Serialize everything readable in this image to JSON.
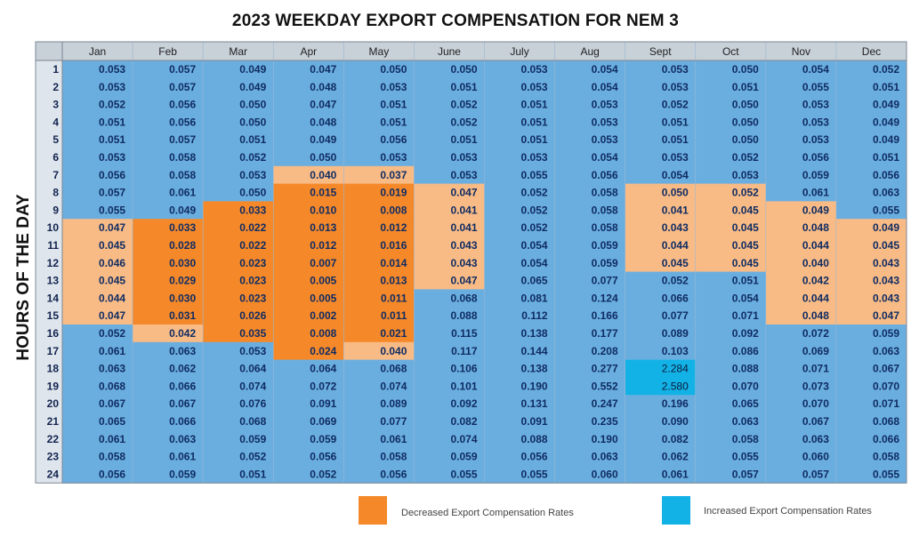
{
  "chart_data": {
    "type": "heatmap",
    "title": "2023 WEEKDAY EXPORT COMPENSATION FOR NEM 3",
    "ylabel": "HOURS OF THE DAY",
    "columns": [
      "Jan",
      "Feb",
      "Mar",
      "Apr",
      "May",
      "June",
      "July",
      "Aug",
      "Sept",
      "Oct",
      "Nov",
      "Dec"
    ],
    "rows": [
      "1",
      "2",
      "3",
      "4",
      "5",
      "6",
      "7",
      "8",
      "9",
      "10",
      "11",
      "12",
      "13",
      "14",
      "15",
      "16",
      "17",
      "18",
      "19",
      "20",
      "21",
      "22",
      "23",
      "24"
    ],
    "values": [
      [
        "0.053",
        "0.057",
        "0.049",
        "0.047",
        "0.050",
        "0.050",
        "0.053",
        "0.054",
        "0.053",
        "0.050",
        "0.054",
        "0.052"
      ],
      [
        "0.053",
        "0.057",
        "0.049",
        "0.048",
        "0.053",
        "0.051",
        "0.053",
        "0.054",
        "0.053",
        "0.051",
        "0.055",
        "0.051"
      ],
      [
        "0.052",
        "0.056",
        "0.050",
        "0.047",
        "0.051",
        "0.052",
        "0.051",
        "0.053",
        "0.052",
        "0.050",
        "0.053",
        "0.049"
      ],
      [
        "0.051",
        "0.056",
        "0.050",
        "0.048",
        "0.051",
        "0.052",
        "0.051",
        "0.053",
        "0.051",
        "0.050",
        "0.053",
        "0.049"
      ],
      [
        "0.051",
        "0.057",
        "0.051",
        "0.049",
        "0.056",
        "0.051",
        "0.051",
        "0.053",
        "0.051",
        "0.050",
        "0.053",
        "0.049"
      ],
      [
        "0.053",
        "0.058",
        "0.052",
        "0.050",
        "0.053",
        "0.053",
        "0.053",
        "0.054",
        "0.053",
        "0.052",
        "0.056",
        "0.051"
      ],
      [
        "0.056",
        "0.058",
        "0.053",
        "0.040",
        "0.037",
        "0.053",
        "0.055",
        "0.056",
        "0.054",
        "0.053",
        "0.059",
        "0.056"
      ],
      [
        "0.057",
        "0.061",
        "0.050",
        "0.015",
        "0.019",
        "0.047",
        "0.052",
        "0.058",
        "0.050",
        "0.052",
        "0.061",
        "0.063"
      ],
      [
        "0.055",
        "0.049",
        "0.033",
        "0.010",
        "0.008",
        "0.041",
        "0.052",
        "0.058",
        "0.041",
        "0.045",
        "0.049",
        "0.055"
      ],
      [
        "0.047",
        "0.033",
        "0.022",
        "0.013",
        "0.012",
        "0.041",
        "0.052",
        "0.058",
        "0.043",
        "0.045",
        "0.048",
        "0.049"
      ],
      [
        "0.045",
        "0.028",
        "0.022",
        "0.012",
        "0.016",
        "0.043",
        "0.054",
        "0.059",
        "0.044",
        "0.045",
        "0.044",
        "0.045"
      ],
      [
        "0.046",
        "0.030",
        "0.023",
        "0.007",
        "0.014",
        "0.043",
        "0.054",
        "0.059",
        "0.045",
        "0.045",
        "0.040",
        "0.043"
      ],
      [
        "0.045",
        "0.029",
        "0.023",
        "0.005",
        "0.013",
        "0.047",
        "0.065",
        "0.077",
        "0.052",
        "0.051",
        "0.042",
        "0.043"
      ],
      [
        "0.044",
        "0.030",
        "0.023",
        "0.005",
        "0.011",
        "0.068",
        "0.081",
        "0.124",
        "0.066",
        "0.054",
        "0.044",
        "0.043"
      ],
      [
        "0.047",
        "0.031",
        "0.026",
        "0.002",
        "0.011",
        "0.088",
        "0.112",
        "0.166",
        "0.077",
        "0.071",
        "0.048",
        "0.047"
      ],
      [
        "0.052",
        "0.042",
        "0.035",
        "0.008",
        "0.021",
        "0.115",
        "0.138",
        "0.177",
        "0.089",
        "0.092",
        "0.072",
        "0.059"
      ],
      [
        "0.061",
        "0.063",
        "0.053",
        "0.024",
        "0.040",
        "0.117",
        "0.144",
        "0.208",
        "0.103",
        "0.086",
        "0.069",
        "0.063"
      ],
      [
        "0.063",
        "0.062",
        "0.064",
        "0.064",
        "0.068",
        "0.106",
        "0.138",
        "0.277",
        "2.284",
        "0.088",
        "0.071",
        "0.067"
      ],
      [
        "0.068",
        "0.066",
        "0.074",
        "0.072",
        "0.074",
        "0.101",
        "0.190",
        "0.552",
        "2.580",
        "0.070",
        "0.073",
        "0.070"
      ],
      [
        "0.067",
        "0.067",
        "0.076",
        "0.091",
        "0.089",
        "0.092",
        "0.131",
        "0.247",
        "0.196",
        "0.065",
        "0.070",
        "0.071"
      ],
      [
        "0.065",
        "0.066",
        "0.068",
        "0.069",
        "0.077",
        "0.082",
        "0.091",
        "0.235",
        "0.090",
        "0.063",
        "0.067",
        "0.068"
      ],
      [
        "0.061",
        "0.063",
        "0.059",
        "0.059",
        "0.061",
        "0.074",
        "0.088",
        "0.190",
        "0.082",
        "0.058",
        "0.063",
        "0.066"
      ],
      [
        "0.058",
        "0.061",
        "0.052",
        "0.056",
        "0.058",
        "0.059",
        "0.056",
        "0.063",
        "0.062",
        "0.055",
        "0.060",
        "0.058"
      ],
      [
        "0.056",
        "0.059",
        "0.051",
        "0.052",
        "0.056",
        "0.055",
        "0.055",
        "0.060",
        "0.061",
        "0.057",
        "0.057",
        "0.055"
      ]
    ],
    "highlight_decreased": [
      [
        9,
        0
      ],
      [
        10,
        0
      ],
      [
        11,
        0
      ],
      [
        12,
        0
      ],
      [
        13,
        0
      ],
      [
        14,
        0
      ],
      [
        9,
        1
      ],
      [
        10,
        1
      ],
      [
        11,
        1
      ],
      [
        12,
        1
      ],
      [
        13,
        1
      ],
      [
        14,
        1
      ],
      [
        15,
        1
      ],
      [
        8,
        2
      ],
      [
        9,
        2
      ],
      [
        10,
        2
      ],
      [
        11,
        2
      ],
      [
        12,
        2
      ],
      [
        13,
        2
      ],
      [
        14,
        2
      ],
      [
        15,
        2
      ],
      [
        6,
        3
      ],
      [
        7,
        3
      ],
      [
        8,
        3
      ],
      [
        9,
        3
      ],
      [
        10,
        3
      ],
      [
        11,
        3
      ],
      [
        12,
        3
      ],
      [
        13,
        3
      ],
      [
        14,
        3
      ],
      [
        15,
        3
      ],
      [
        16,
        3
      ],
      [
        6,
        4
      ],
      [
        7,
        4
      ],
      [
        8,
        4
      ],
      [
        9,
        4
      ],
      [
        10,
        4
      ],
      [
        11,
        4
      ],
      [
        12,
        4
      ],
      [
        13,
        4
      ],
      [
        14,
        4
      ],
      [
        15,
        4
      ],
      [
        16,
        4
      ],
      [
        7,
        5
      ],
      [
        8,
        5
      ],
      [
        9,
        5
      ],
      [
        10,
        5
      ],
      [
        11,
        5
      ],
      [
        12,
        5
      ],
      [
        7,
        8
      ],
      [
        8,
        8
      ],
      [
        9,
        8
      ],
      [
        10,
        8
      ],
      [
        11,
        8
      ],
      [
        7,
        9
      ],
      [
        8,
        9
      ],
      [
        9,
        9
      ],
      [
        10,
        9
      ],
      [
        11,
        9
      ],
      [
        8,
        10
      ],
      [
        9,
        10
      ],
      [
        10,
        10
      ],
      [
        11,
        10
      ],
      [
        12,
        10
      ],
      [
        13,
        10
      ],
      [
        14,
        10
      ],
      [
        9,
        11
      ],
      [
        10,
        11
      ],
      [
        11,
        11
      ],
      [
        12,
        11
      ],
      [
        13,
        11
      ],
      [
        14,
        11
      ]
    ],
    "highlight_increased": [
      [
        17,
        8
      ],
      [
        18,
        8
      ]
    ],
    "legend": [
      {
        "label": "Decreased Export Compensation Rates",
        "color": "#f5892a"
      },
      {
        "label": "Increased Export Compensation Rates",
        "color": "#13b2e6"
      }
    ],
    "colors": {
      "base_cell": "#6aaee0",
      "decreased": "#f5892a",
      "decreased_light": "#f8bb86",
      "increased": "#13b2e6",
      "header_bg": "#c8d0d8",
      "value_text": "#102c62"
    }
  }
}
